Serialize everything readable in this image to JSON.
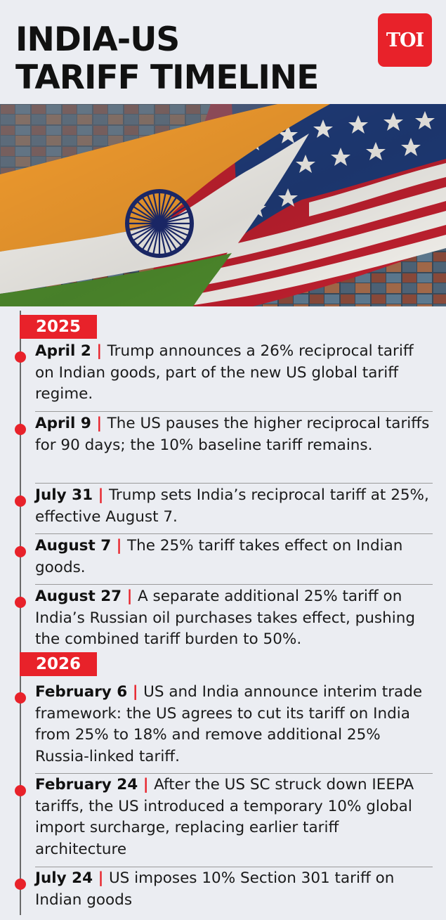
{
  "header": {
    "title_line1": "INDIA-US",
    "title_line2": "TARIFF TIMELINE",
    "logo_text": "TOI"
  },
  "hero": {
    "image_kind": "india-us-flags-photo",
    "colors": {
      "saffron": "#ef9a2e",
      "white": "#f3f1ec",
      "green": "#4f8d2d",
      "chakra": "#1c2a6e",
      "us_red": "#c0202f",
      "us_blue": "#1f3b78"
    }
  },
  "timeline": {
    "years": [
      {
        "year": "2025",
        "events": [
          {
            "date": "April 2",
            "separator": "|",
            "text": "Trump announces a 26% reciprocal tariff on Indian goods, part of the new US global tariff regime."
          },
          {
            "date": "April 9",
            "separator": "|",
            "text": "The US pauses the higher reciprocal tariffs for 90 days; the 10% baseline tariff remains."
          },
          {
            "date": "July 31",
            "separator": "|",
            "text": "Trump sets India’s reciprocal tariff at 25%, effective August 7."
          },
          {
            "date": "August 7",
            "separator": "|",
            "text": "The 25% tariff takes effect on Indian goods."
          },
          {
            "date": "August 27",
            "separator": "|",
            "text": "A separate additional 25% tariff on India’s Russian oil purchases takes effect, pushing the combined tariff burden to 50%."
          }
        ]
      },
      {
        "year": "2026",
        "events": [
          {
            "date": "February 6",
            "separator": "|",
            "text": "US and India announce interim trade framework: the US agrees to cut its tariff on India from 25% to 18% and remove additional 25% Russia-linked tariff."
          },
          {
            "date": "February 24",
            "separator": "|",
            "text": "After the US SC struck down IEEPA tariffs, the US introduced a temporary 10% global import surcharge, replacing earlier tariff architecture"
          },
          {
            "date": "July 24",
            "separator": "|",
            "text": "US imposes 10% Section 301 tariff on Indian goods"
          }
        ]
      }
    ]
  }
}
